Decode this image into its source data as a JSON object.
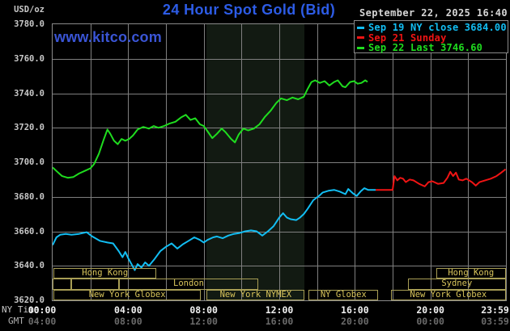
{
  "header": {
    "unit_label": "USD/oz",
    "title": "24 Hour Spot Gold (Bid)",
    "datetime": "September 22, 2025 16:40",
    "watermark": "www.kitco.com"
  },
  "legend": {
    "items": [
      {
        "color": "#12bdf2",
        "label": "Sep 19 NY close 3684.00"
      },
      {
        "color": "#f01414",
        "label": "Sep 21 Sunday"
      },
      {
        "color": "#1fdd1f",
        "label": "Sep 22 Last 3746.60"
      }
    ]
  },
  "axes": {
    "y_ticks": [
      "3780.0",
      "3760.0",
      "3740.0",
      "3720.0",
      "3700.0",
      "3680.0",
      "3660.0",
      "3640.0",
      "3620.0"
    ],
    "tick_hours": [
      0,
      4,
      8,
      12,
      16,
      20,
      23.98
    ],
    "x_rows": [
      {
        "label": "NY Time",
        "text_color": "#f0f0f0",
        "ticks": [
          "00:00",
          "04:00",
          "08:00",
          "12:00",
          "16:00",
          "20:00",
          "23:59"
        ]
      },
      {
        "label": "GMT",
        "text_color": "#6a6a6a",
        "ticks": [
          "04:00",
          "08:00",
          "12:00",
          "16:00",
          "20:00",
          "00:00",
          "03:59"
        ]
      }
    ]
  },
  "sessions": {
    "rows": [
      {
        "segments": [
          {
            "start": 0.05,
            "end": 5.5,
            "label": "Hong Kong"
          },
          {
            "start": 20.3,
            "end": 24,
            "label": "Hong Kong"
          }
        ]
      },
      {
        "segments": [
          {
            "start": 0,
            "end": 1,
            "label": ""
          },
          {
            "start": 1,
            "end": 3.5,
            "label": ""
          },
          {
            "start": 3.5,
            "end": 10.9,
            "label": "London"
          },
          {
            "start": 18.8,
            "end": 24,
            "label": "Sydney"
          }
        ]
      },
      {
        "segments": [
          {
            "start": 0.05,
            "end": 7.85,
            "label": "New York Globex"
          },
          {
            "start": 8.15,
            "end": 13.35,
            "label": "New York NYMEX"
          },
          {
            "start": 13.55,
            "end": 17.25,
            "label": "NY Globex"
          },
          {
            "start": 17.9,
            "end": 24,
            "label": "New York Globex"
          }
        ]
      }
    ]
  },
  "band": {
    "start": 8.15,
    "end": 13.35,
    "color": "#121a12"
  },
  "chart_data": {
    "type": "line",
    "title": "24 Hour Spot Gold (Bid)",
    "xlabel": "NY Time (hours, 00:00-23:59)",
    "ylabel": "USD/oz",
    "xlim": [
      0,
      24
    ],
    "ylim": [
      3620,
      3780
    ],
    "y_gridstep": 20,
    "x_gridstep_hours": 2,
    "grid": true,
    "legend_position": "top-right",
    "series": [
      {
        "name": "Sep 19 NY close 3684.00",
        "color": "#12bdf2",
        "points": [
          [
            0,
            3652
          ],
          [
            0.2,
            3656.5
          ],
          [
            0.4,
            3658
          ],
          [
            0.7,
            3658.5
          ],
          [
            1,
            3658
          ],
          [
            1.4,
            3658.5
          ],
          [
            1.8,
            3659.5
          ],
          [
            2.1,
            3657
          ],
          [
            2.5,
            3654.5
          ],
          [
            2.9,
            3653.5
          ],
          [
            3.2,
            3653
          ],
          [
            3.5,
            3648.5
          ],
          [
            3.7,
            3645
          ],
          [
            3.85,
            3648
          ],
          [
            4,
            3644.5
          ],
          [
            4.2,
            3640.5
          ],
          [
            4.35,
            3637.5
          ],
          [
            4.5,
            3641
          ],
          [
            4.7,
            3639
          ],
          [
            4.9,
            3642
          ],
          [
            5.1,
            3640
          ],
          [
            5.4,
            3644
          ],
          [
            5.7,
            3648.5
          ],
          [
            6,
            3651
          ],
          [
            6.3,
            3653
          ],
          [
            6.6,
            3650
          ],
          [
            6.9,
            3652.5
          ],
          [
            7.2,
            3654.5
          ],
          [
            7.5,
            3656.5
          ],
          [
            7.8,
            3655
          ],
          [
            8,
            3653.5
          ],
          [
            8.2,
            3655
          ],
          [
            8.5,
            3656.5
          ],
          [
            8.7,
            3657
          ],
          [
            9,
            3656
          ],
          [
            9.3,
            3657.5
          ],
          [
            9.6,
            3658.5
          ],
          [
            9.9,
            3659
          ],
          [
            10.2,
            3660
          ],
          [
            10.5,
            3660.5
          ],
          [
            10.8,
            3660
          ],
          [
            11.1,
            3657.5
          ],
          [
            11.4,
            3660
          ],
          [
            11.7,
            3663
          ],
          [
            12,
            3668
          ],
          [
            12.2,
            3670.5
          ],
          [
            12.4,
            3668
          ],
          [
            12.6,
            3667
          ],
          [
            12.9,
            3666.5
          ],
          [
            13.1,
            3668
          ],
          [
            13.3,
            3670
          ],
          [
            13.5,
            3673
          ],
          [
            13.8,
            3678
          ],
          [
            14.1,
            3680.5
          ],
          [
            14.3,
            3682.5
          ],
          [
            14.6,
            3683.5
          ],
          [
            14.9,
            3684
          ],
          [
            15.2,
            3683
          ],
          [
            15.5,
            3681.5
          ],
          [
            15.65,
            3684.5
          ],
          [
            15.9,
            3682
          ],
          [
            16.1,
            3680.5
          ],
          [
            16.3,
            3683
          ],
          [
            16.5,
            3685
          ],
          [
            16.7,
            3684
          ],
          [
            17.1,
            3684
          ]
        ]
      },
      {
        "name": "Sep 21 Sunday",
        "color": "#f01414",
        "points": [
          [
            17.1,
            3684
          ],
          [
            18,
            3684
          ],
          [
            18.1,
            3692
          ],
          [
            18.25,
            3689.5
          ],
          [
            18.4,
            3691
          ],
          [
            18.55,
            3690.5
          ],
          [
            18.7,
            3688.5
          ],
          [
            18.9,
            3690
          ],
          [
            19.1,
            3689.5
          ],
          [
            19.4,
            3687.5
          ],
          [
            19.7,
            3686
          ],
          [
            19.9,
            3688.5
          ],
          [
            20.1,
            3689
          ],
          [
            20.4,
            3687.5
          ],
          [
            20.7,
            3688
          ],
          [
            20.9,
            3691
          ],
          [
            21.05,
            3694.5
          ],
          [
            21.2,
            3692
          ],
          [
            21.35,
            3694
          ],
          [
            21.5,
            3690
          ],
          [
            21.7,
            3689.5
          ],
          [
            21.9,
            3690.5
          ],
          [
            22.2,
            3688.5
          ],
          [
            22.4,
            3686.5
          ],
          [
            22.6,
            3688.5
          ],
          [
            22.9,
            3689.5
          ],
          [
            23.2,
            3690.5
          ],
          [
            23.5,
            3692
          ],
          [
            23.75,
            3694
          ],
          [
            23.98,
            3696
          ]
        ]
      },
      {
        "name": "Sep 22 Last 3746.60",
        "color": "#1fdd1f",
        "points": [
          [
            0,
            3697
          ],
          [
            0.25,
            3694.5
          ],
          [
            0.5,
            3692
          ],
          [
            0.8,
            3691
          ],
          [
            1.1,
            3691.5
          ],
          [
            1.4,
            3693.5
          ],
          [
            1.7,
            3695
          ],
          [
            2,
            3696.5
          ],
          [
            2.2,
            3699
          ],
          [
            2.45,
            3705
          ],
          [
            2.7,
            3713
          ],
          [
            2.9,
            3719
          ],
          [
            3.05,
            3716.5
          ],
          [
            3.25,
            3712.5
          ],
          [
            3.45,
            3710.5
          ],
          [
            3.65,
            3713.5
          ],
          [
            3.85,
            3712.5
          ],
          [
            4.05,
            3713.5
          ],
          [
            4.25,
            3715.5
          ],
          [
            4.5,
            3719
          ],
          [
            4.8,
            3720.5
          ],
          [
            5.1,
            3719.5
          ],
          [
            5.35,
            3721
          ],
          [
            5.6,
            3720
          ],
          [
            5.9,
            3721
          ],
          [
            6.2,
            3722.5
          ],
          [
            6.5,
            3723.5
          ],
          [
            6.8,
            3726
          ],
          [
            7.05,
            3727.5
          ],
          [
            7.3,
            3724.5
          ],
          [
            7.55,
            3725.5
          ],
          [
            7.8,
            3722
          ],
          [
            8,
            3721
          ],
          [
            8.2,
            3718
          ],
          [
            8.45,
            3714
          ],
          [
            8.7,
            3716.5
          ],
          [
            8.95,
            3719.5
          ],
          [
            9.15,
            3717.5
          ],
          [
            9.45,
            3713.5
          ],
          [
            9.65,
            3711.5
          ],
          [
            9.85,
            3716
          ],
          [
            10.1,
            3719.5
          ],
          [
            10.35,
            3718.5
          ],
          [
            10.65,
            3719.5
          ],
          [
            10.95,
            3722
          ],
          [
            11.25,
            3726.5
          ],
          [
            11.55,
            3730
          ],
          [
            11.85,
            3734.5
          ],
          [
            12.1,
            3737
          ],
          [
            12.4,
            3736
          ],
          [
            12.7,
            3737.5
          ],
          [
            13,
            3736.5
          ],
          [
            13.3,
            3738
          ],
          [
            13.5,
            3742.5
          ],
          [
            13.7,
            3746.5
          ],
          [
            13.9,
            3747.5
          ],
          [
            14.15,
            3746
          ],
          [
            14.4,
            3747
          ],
          [
            14.65,
            3744.5
          ],
          [
            14.9,
            3746.5
          ],
          [
            15.1,
            3747.5
          ],
          [
            15.35,
            3744
          ],
          [
            15.5,
            3743.5
          ],
          [
            15.75,
            3746.5
          ],
          [
            15.95,
            3747
          ],
          [
            16.15,
            3745.5
          ],
          [
            16.35,
            3746
          ],
          [
            16.55,
            3747.5
          ],
          [
            16.67,
            3746.6
          ]
        ]
      }
    ]
  },
  "colors": {
    "background": "#000000",
    "grid": "#7f7f7f",
    "frame": "#8a8a8a",
    "title_blue": "#2d5ce6",
    "watermark_blue": "#3a55d6",
    "session_text": "#d9c55c",
    "session_border": "#a89e55",
    "y_axis_text": "#c8c8c8",
    "ny_time_row_text": "#f0f0f0",
    "gmt_row_text": "#6a6a6a",
    "date_text": "#d6d6d6",
    "nymex_band": "#121a12"
  }
}
